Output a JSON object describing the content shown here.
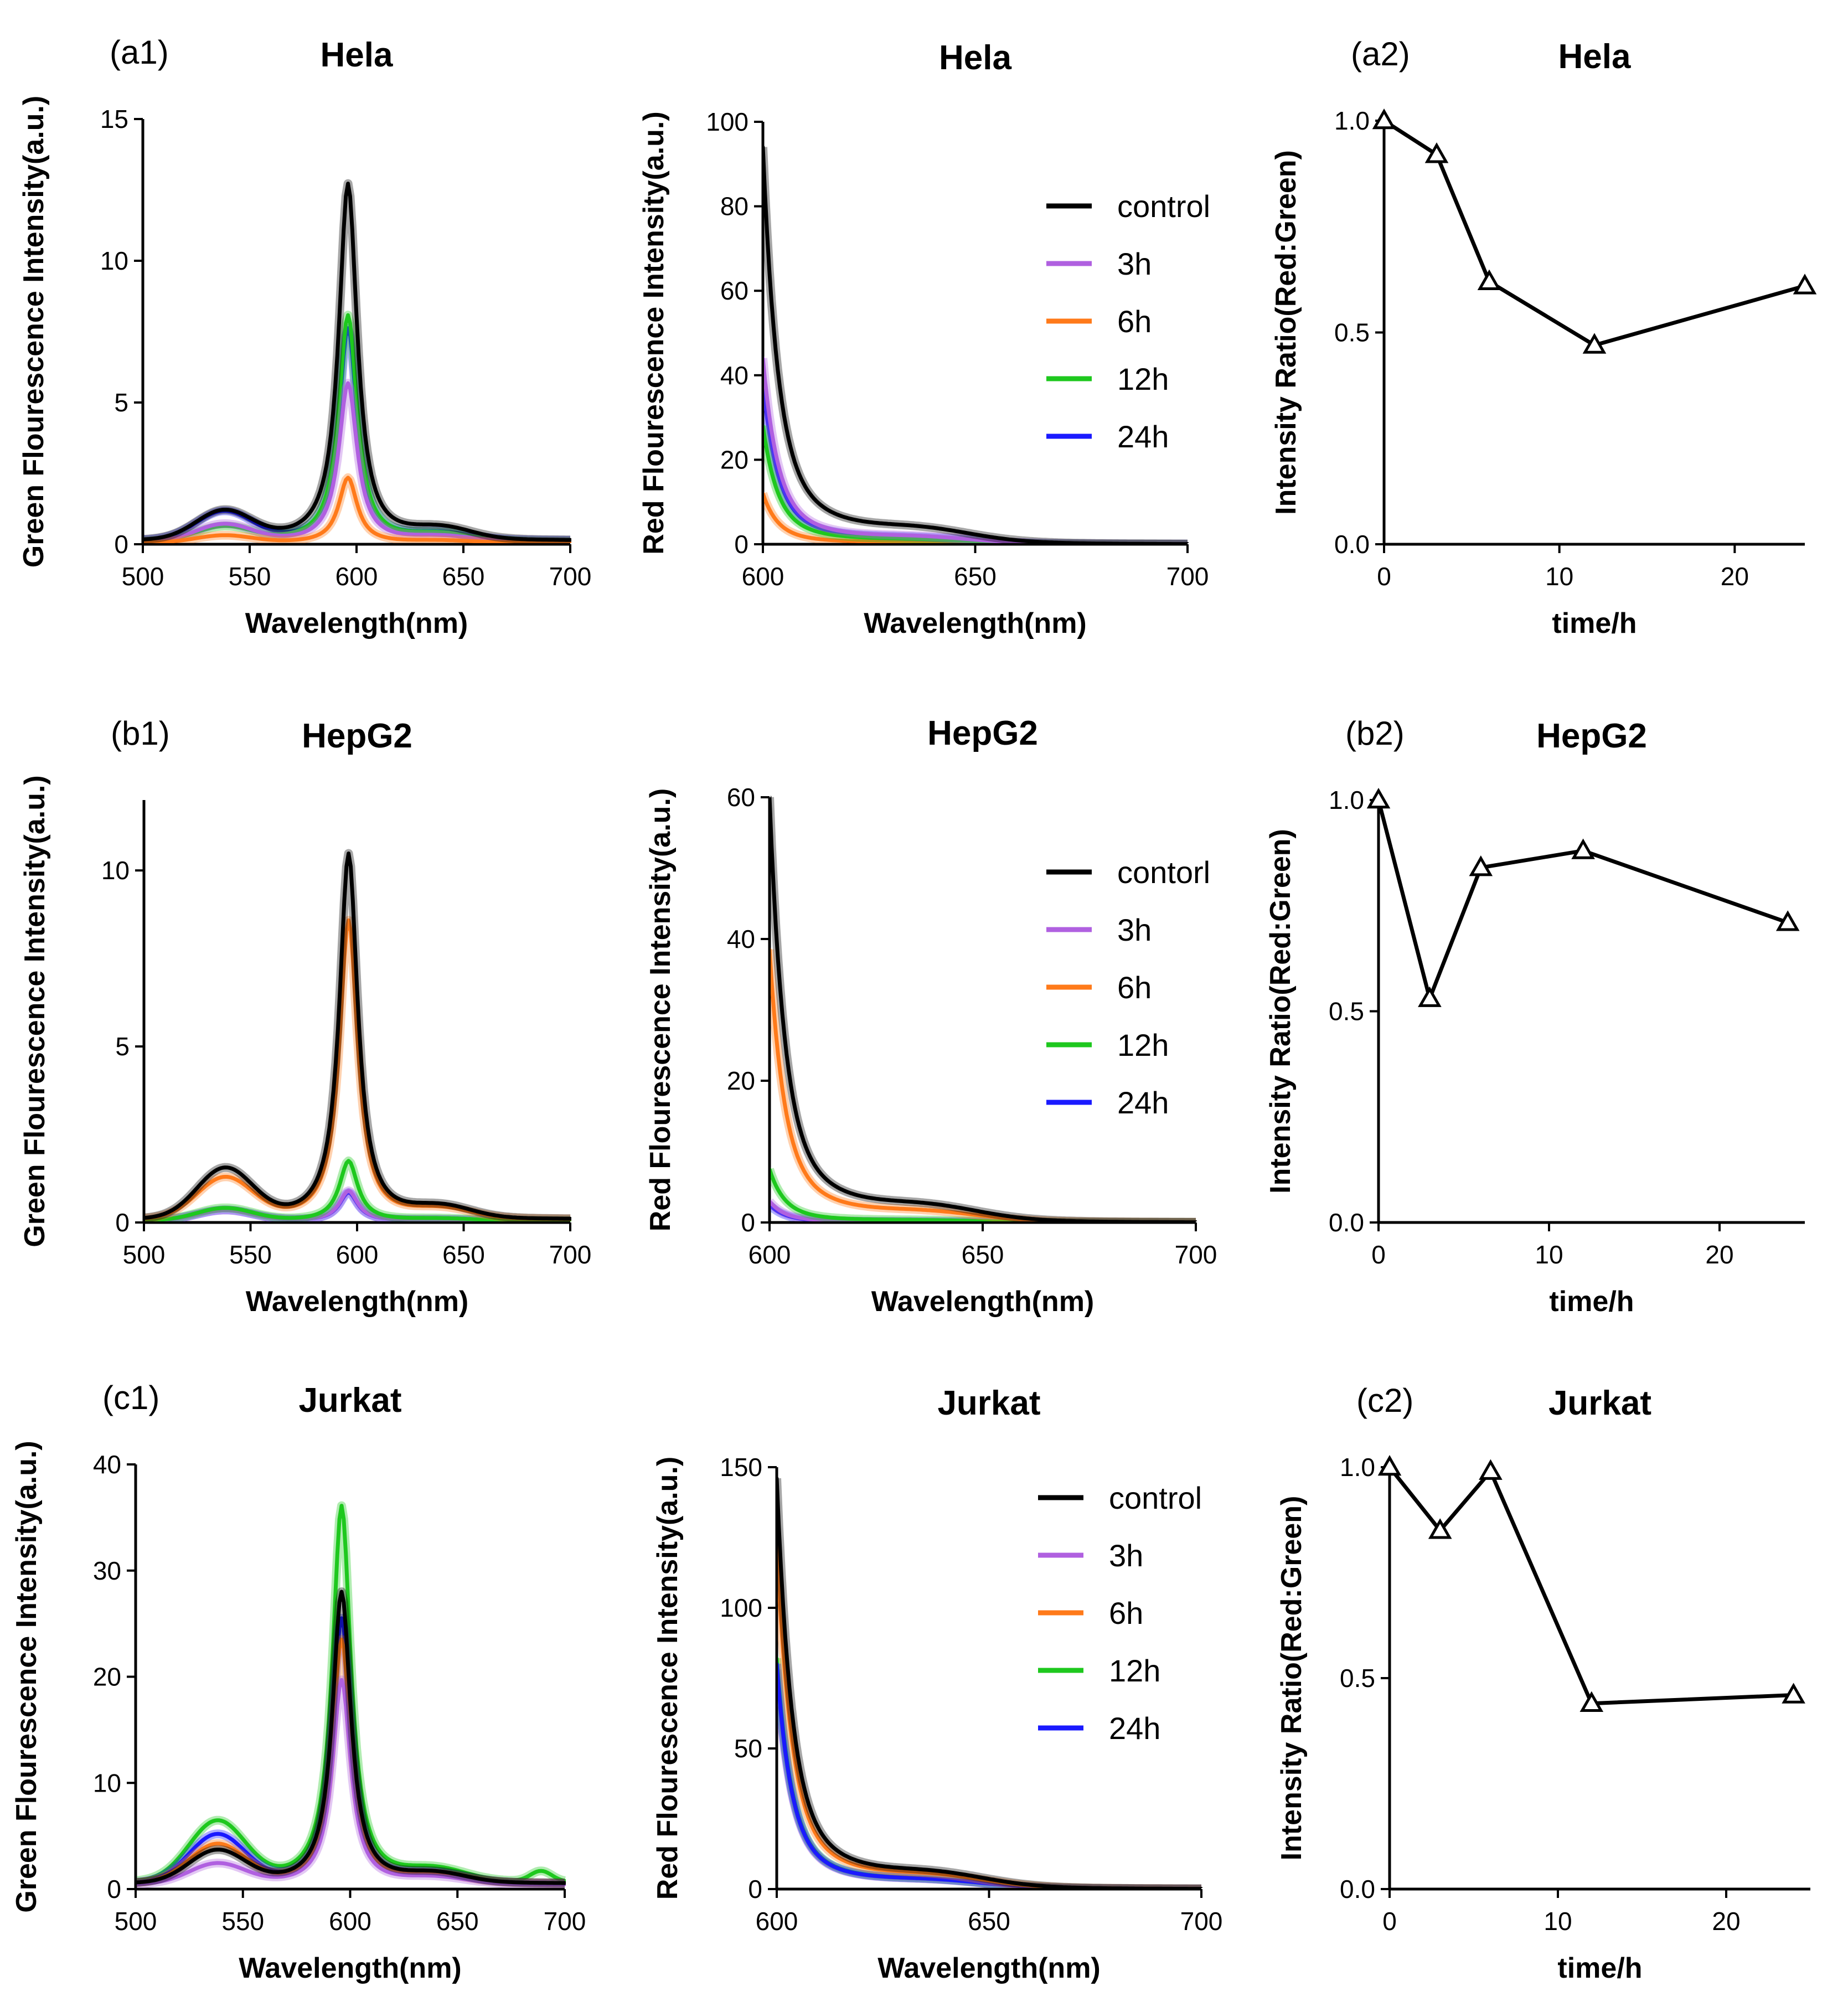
{
  "figure": {
    "background": "#ffffff"
  },
  "palette": {
    "control": "#000000",
    "3h": "#b060e0",
    "6h": "#ff7a1a",
    "12h": "#1ec81e",
    "24h": "#1a1aff"
  },
  "chart_data": [
    {
      "id": "a1",
      "type": "line",
      "panel_label": "(a1)",
      "title": "Hela",
      "xlabel": "Wavelength(nm)",
      "ylabel": "Green Flourescence Intensity(a.u.)",
      "xlim": [
        500,
        700
      ],
      "ylim": [
        0,
        15
      ],
      "xticks": [
        500,
        550,
        600,
        650,
        700
      ],
      "yticks": [
        0,
        5,
        10,
        15
      ],
      "series": [
        {
          "name": "24h",
          "color": "#1a1aff",
          "baseline": 0.12,
          "g_amp": 1.0,
          "r_amp": 7.5
        },
        {
          "name": "12h",
          "color": "#1ec81e",
          "baseline": 0.08,
          "g_amp": 0.5,
          "r_amp": 8.0
        },
        {
          "name": "3h",
          "color": "#b060e0",
          "baseline": 0.08,
          "g_amp": 0.6,
          "r_amp": 5.6
        },
        {
          "name": "6h",
          "color": "#ff7a1a",
          "baseline": 0.05,
          "g_amp": 0.25,
          "r_amp": 2.3
        },
        {
          "name": "control",
          "color": "#000000",
          "baseline": 0.12,
          "g_amp": 1.0,
          "r_amp": 12.6
        }
      ]
    },
    {
      "id": "a_red",
      "type": "line",
      "title": "Hela",
      "xlabel": "Wavelength(nm)",
      "ylabel": "Red Flourescence Intensity(a.u.)",
      "xlim": [
        600,
        700
      ],
      "ylim": [
        0,
        100
      ],
      "xticks": [
        600,
        650,
        700
      ],
      "yticks": [
        0,
        20,
        40,
        60,
        80,
        100
      ],
      "legend": [
        "control",
        "3h",
        "6h",
        "12h",
        "24h"
      ],
      "series": [
        {
          "name": "6h",
          "color": "#ff7a1a",
          "start": 12
        },
        {
          "name": "24h",
          "color": "#1a1aff",
          "start": 38
        },
        {
          "name": "12h",
          "color": "#1ec81e",
          "start": 28
        },
        {
          "name": "3h",
          "color": "#b060e0",
          "start": 44
        },
        {
          "name": "control",
          "color": "#000000",
          "start": 94
        }
      ]
    },
    {
      "id": "a2",
      "type": "line",
      "panel_label": "(a2)",
      "title": "Hela",
      "xlabel": "time/h",
      "ylabel": "Intensity Ratio(Red:Green)",
      "xlim": [
        0,
        24
      ],
      "ylim": [
        0,
        1.0
      ],
      "xticks": [
        0,
        10,
        20
      ],
      "yticks": [
        0.0,
        0.5,
        1.0
      ],
      "series": [
        {
          "name": "ratio",
          "color": "#000000",
          "x": [
            0,
            3,
            6,
            12,
            24
          ],
          "y": [
            1.0,
            0.92,
            0.62,
            0.47,
            0.61
          ]
        }
      ]
    },
    {
      "id": "b1",
      "type": "line",
      "panel_label": "(b1)",
      "title": "HepG2",
      "xlabel": "Wavelength(nm)",
      "ylabel": "Green Flourescence Intensity(a.u.)",
      "xlim": [
        500,
        700
      ],
      "ylim": [
        0,
        12
      ],
      "xticks": [
        500,
        550,
        600,
        650,
        700
      ],
      "yticks": [
        0,
        5,
        10
      ],
      "series": [
        {
          "name": "24h",
          "color": "#1a1aff",
          "baseline": 0.05,
          "g_amp": 0.3,
          "r_amp": 0.8
        },
        {
          "name": "3h",
          "color": "#b060e0",
          "baseline": 0.05,
          "g_amp": 0.3,
          "r_amp": 0.85
        },
        {
          "name": "12h",
          "color": "#1ec81e",
          "baseline": 0.05,
          "g_amp": 0.35,
          "r_amp": 1.7
        },
        {
          "name": "6h",
          "color": "#ff7a1a",
          "baseline": 0.08,
          "g_amp": 1.15,
          "r_amp": 8.5
        },
        {
          "name": "control",
          "color": "#000000",
          "baseline": 0.08,
          "g_amp": 1.4,
          "r_amp": 10.4
        }
      ]
    },
    {
      "id": "b_red",
      "type": "line",
      "title": "HepG2",
      "xlabel": "Wavelength(nm)",
      "ylabel": "Red Flourescence Intensity(a.u.)",
      "xlim": [
        600,
        700
      ],
      "ylim": [
        0,
        60
      ],
      "xticks": [
        600,
        650,
        700
      ],
      "yticks": [
        0,
        20,
        40,
        60
      ],
      "legend": [
        "contorl",
        "3h",
        "6h",
        "12h",
        "24h"
      ],
      "series": [
        {
          "name": "24h",
          "color": "#1a1aff",
          "start": 2.5
        },
        {
          "name": "3h",
          "color": "#b060e0",
          "start": 3
        },
        {
          "name": "12h",
          "color": "#1ec81e",
          "start": 7.5
        },
        {
          "name": "6h",
          "color": "#ff7a1a",
          "start": 38.5
        },
        {
          "name": "contorl",
          "color": "#000000",
          "start": 60
        }
      ]
    },
    {
      "id": "b2",
      "type": "line",
      "panel_label": "(b2)",
      "title": "HepG2",
      "xlabel": "time/h",
      "ylabel": "Intensity Ratio(Red:Green)",
      "xlim": [
        0,
        25
      ],
      "ylim": [
        0,
        1.0
      ],
      "xticks": [
        0,
        10,
        20
      ],
      "yticks": [
        0.0,
        0.5,
        1.0
      ],
      "series": [
        {
          "name": "ratio",
          "color": "#000000",
          "x": [
            0,
            3,
            6,
            12,
            24
          ],
          "y": [
            1.0,
            0.53,
            0.84,
            0.88,
            0.71
          ]
        }
      ]
    },
    {
      "id": "c1",
      "type": "line",
      "panel_label": "(c1)",
      "title": "Jurkat",
      "xlabel": "Wavelength(nm)",
      "ylabel": "Green Flourescence Intensity(a.u.)",
      "xlim": [
        500,
        700
      ],
      "ylim": [
        0,
        40
      ],
      "xticks": [
        500,
        550,
        600,
        650,
        700
      ],
      "yticks": [
        0,
        10,
        20,
        30,
        40
      ],
      "series": [
        {
          "name": "12h",
          "color": "#1ec81e",
          "baseline": 0.6,
          "g_amp": 5.6,
          "r_amp": 35.5,
          "bump": 1.0
        },
        {
          "name": "24h",
          "color": "#1a1aff",
          "baseline": 0.5,
          "g_amp": 4.5,
          "r_amp": 25.0
        },
        {
          "name": "6h",
          "color": "#ff7a1a",
          "baseline": 0.5,
          "g_amp": 3.6,
          "r_amp": 23.0
        },
        {
          "name": "3h",
          "color": "#b060e0",
          "baseline": 0.4,
          "g_amp": 1.9,
          "r_amp": 19.3
        },
        {
          "name": "control",
          "color": "#000000",
          "baseline": 0.5,
          "g_amp": 3.0,
          "r_amp": 27.5
        }
      ]
    },
    {
      "id": "c_red",
      "type": "line",
      "title": "Jurkat",
      "xlabel": "Wavelength(nm)",
      "ylabel": "Red Flourescence Intensity(a.u.)",
      "xlim": [
        600,
        700
      ],
      "ylim": [
        0,
        150
      ],
      "xticks": [
        600,
        650,
        700
      ],
      "yticks": [
        0,
        50,
        100,
        150
      ],
      "legend": [
        "control",
        "3h",
        "6h",
        "12h",
        "24h"
      ],
      "series": [
        {
          "name": "3h",
          "color": "#b060e0",
          "start": 78
        },
        {
          "name": "12h",
          "color": "#1ec81e",
          "start": 82
        },
        {
          "name": "24h",
          "color": "#1a1aff",
          "start": 80
        },
        {
          "name": "6h",
          "color": "#ff7a1a",
          "start": 122
        },
        {
          "name": "control",
          "color": "#000000",
          "start": 146
        }
      ]
    },
    {
      "id": "c2",
      "type": "line",
      "panel_label": "(c2)",
      "title": "Jurkat",
      "xlabel": "time/h",
      "ylabel": "Intensity Ratio(Red:Green)",
      "xlim": [
        0,
        25
      ],
      "ylim": [
        0,
        1.0
      ],
      "xticks": [
        0,
        10,
        20
      ],
      "yticks": [
        0.0,
        0.5,
        1.0
      ],
      "series": [
        {
          "name": "ratio",
          "color": "#000000",
          "x": [
            0,
            3,
            6,
            12,
            24
          ],
          "y": [
            1.0,
            0.85,
            0.99,
            0.44,
            0.46
          ]
        }
      ]
    }
  ]
}
